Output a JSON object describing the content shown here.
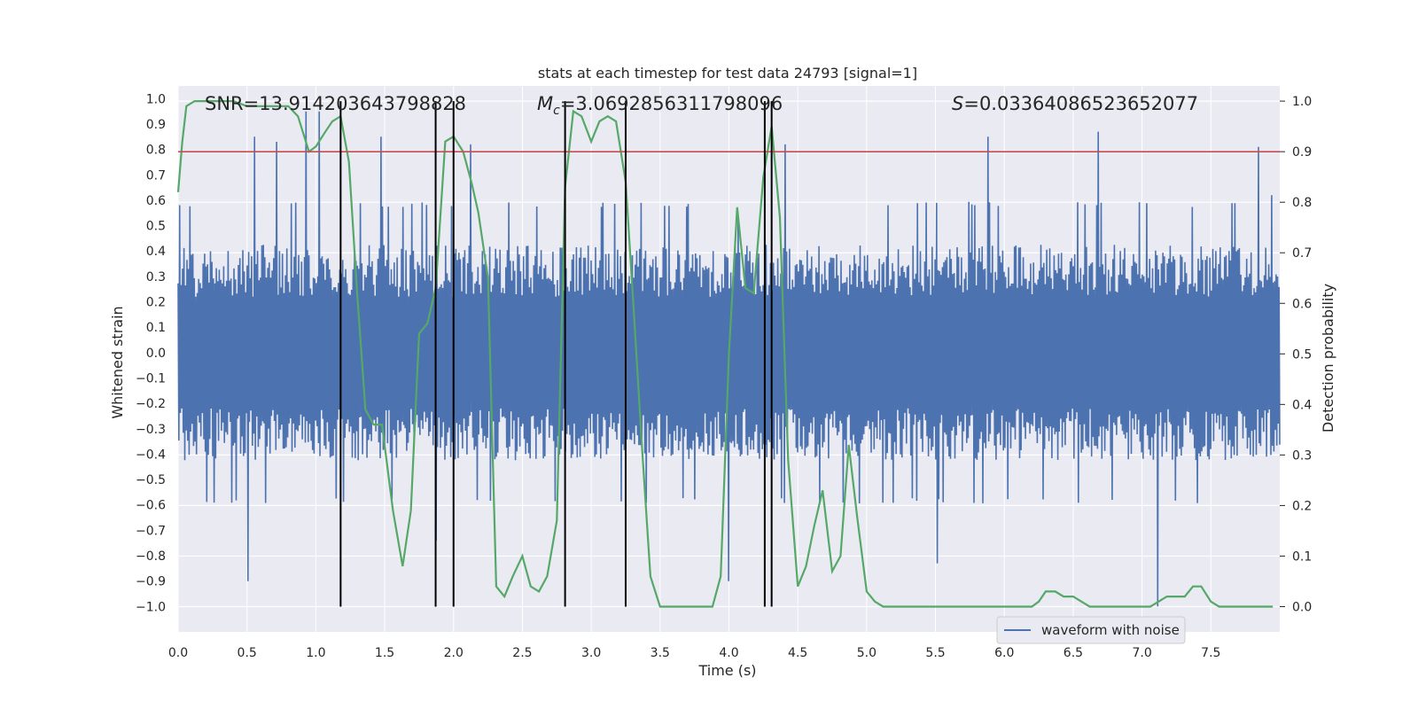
{
  "chart_data": {
    "type": "line",
    "title": "stats at each timestep for test data 24793 [signal=1]",
    "xlabel": "Time (s)",
    "ylabel_left": "Whitened strain",
    "ylabel_right": "Detection probability",
    "xlim": [
      0.0,
      8.0
    ],
    "ylim_left": [
      -1.1,
      1.05
    ],
    "ylim_right": [
      -0.05,
      1.03
    ],
    "x_ticks": [
      "0.0",
      "0.5",
      "1.0",
      "1.5",
      "2.0",
      "2.5",
      "3.0",
      "3.5",
      "4.0",
      "4.5",
      "5.0",
      "5.5",
      "6.0",
      "6.5",
      "7.0",
      "7.5"
    ],
    "x_tick_values": [
      0.0,
      0.5,
      1.0,
      1.5,
      2.0,
      2.5,
      3.0,
      3.5,
      4.0,
      4.5,
      5.0,
      5.5,
      6.0,
      6.5,
      7.0,
      7.5
    ],
    "y_left_ticks": [
      "1.0",
      "0.9",
      "0.8",
      "0.7",
      "0.6",
      "0.5",
      "0.4",
      "0.3",
      "0.2",
      "0.1",
      "0.0",
      "−0.1",
      "−0.2",
      "−0.3",
      "−0.4",
      "−0.5",
      "−0.6",
      "−0.7",
      "−0.8",
      "−0.9",
      "−1.0"
    ],
    "y_left_tick_values": [
      1.0,
      0.9,
      0.8,
      0.7,
      0.6,
      0.5,
      0.4,
      0.3,
      0.2,
      0.1,
      0.0,
      -0.1,
      -0.2,
      -0.3,
      -0.4,
      -0.5,
      -0.6,
      -0.7,
      -0.8,
      -0.9,
      -1.0
    ],
    "y_right_ticks": [
      "1.0",
      "0.9",
      "0.8",
      "0.7",
      "0.6",
      "0.5",
      "0.4",
      "0.3",
      "0.2",
      "0.1",
      "0.0"
    ],
    "y_right_tick_values": [
      1.0,
      0.9,
      0.8,
      0.7,
      0.6,
      0.5,
      0.4,
      0.3,
      0.2,
      0.1,
      0.0
    ],
    "annotations": {
      "snr": "SNR=13.914203643798828",
      "mc_symbol": "M",
      "mc_sub": "c",
      "mc_value": "=3.0692856311798096",
      "s_symbol": "S",
      "s_value": "=0.03364086523652077"
    },
    "threshold": 0.9,
    "vertical_lines": [
      1.18,
      1.87,
      2.0,
      2.81,
      3.25,
      4.26,
      4.31
    ],
    "legend": {
      "label": "waveform with noise",
      "position": "lower-right"
    },
    "waveform": {
      "name": "waveform with noise",
      "typical_high": 0.4,
      "typical_low": -0.4,
      "spikes": [
        {
          "x": 0.51,
          "y": -0.9
        },
        {
          "x": 0.55,
          "y": 0.85
        },
        {
          "x": 0.72,
          "y": 0.83
        },
        {
          "x": 0.93,
          "y": 0.95
        },
        {
          "x": 1.02,
          "y": 0.95
        },
        {
          "x": 1.47,
          "y": 0.85
        },
        {
          "x": 1.87,
          "y": -0.74
        },
        {
          "x": 2.12,
          "y": 0.82
        },
        {
          "x": 4.0,
          "y": -0.9
        },
        {
          "x": 4.07,
          "y": 0.53
        },
        {
          "x": 4.41,
          "y": 0.82
        },
        {
          "x": 5.51,
          "y": -0.83
        },
        {
          "x": 5.88,
          "y": 0.85
        },
        {
          "x": 6.68,
          "y": 0.87
        },
        {
          "x": 7.11,
          "y": -1.0
        },
        {
          "x": 7.85,
          "y": 0.81
        },
        {
          "x": 7.94,
          "y": 0.62
        }
      ]
    },
    "probability": {
      "name": "detection probability",
      "x": [
        0.0,
        0.03,
        0.06,
        0.12,
        0.2,
        0.3,
        0.4,
        0.5,
        0.6,
        0.7,
        0.8,
        0.87,
        0.95,
        1.0,
        1.07,
        1.12,
        1.18,
        1.24,
        1.3,
        1.36,
        1.42,
        1.48,
        1.56,
        1.63,
        1.69,
        1.75,
        1.81,
        1.87,
        1.94,
        2.0,
        2.07,
        2.13,
        2.18,
        2.25,
        2.31,
        2.37,
        2.43,
        2.5,
        2.56,
        2.62,
        2.68,
        2.75,
        2.81,
        2.87,
        2.93,
        3.0,
        3.06,
        3.12,
        3.18,
        3.25,
        3.31,
        3.37,
        3.43,
        3.5,
        3.56,
        3.62,
        3.68,
        3.75,
        3.82,
        3.88,
        3.94,
        4.0,
        4.06,
        4.12,
        4.18,
        4.25,
        4.31,
        4.37,
        4.43,
        4.5,
        4.56,
        4.62,
        4.68,
        4.75,
        4.81,
        4.87,
        4.93,
        5.0,
        5.06,
        5.12,
        5.2,
        5.3,
        5.4,
        5.5,
        5.6,
        5.7,
        5.8,
        5.9,
        6.0,
        6.1,
        6.2,
        6.25,
        6.3,
        6.37,
        6.43,
        6.5,
        6.56,
        6.62,
        6.68,
        6.75,
        6.8,
        6.9,
        7.0,
        7.06,
        7.12,
        7.18,
        7.25,
        7.31,
        7.37,
        7.43,
        7.5,
        7.56,
        7.62,
        7.7,
        7.8,
        7.9,
        7.95
      ],
      "y": [
        0.82,
        0.92,
        0.99,
        1.0,
        1.0,
        1.0,
        1.0,
        0.99,
        0.99,
        0.99,
        0.99,
        0.97,
        0.9,
        0.91,
        0.94,
        0.96,
        0.97,
        0.88,
        0.62,
        0.39,
        0.36,
        0.36,
        0.19,
        0.08,
        0.19,
        0.54,
        0.56,
        0.63,
        0.92,
        0.93,
        0.9,
        0.84,
        0.78,
        0.65,
        0.04,
        0.02,
        0.06,
        0.1,
        0.04,
        0.03,
        0.06,
        0.17,
        0.83,
        0.98,
        0.97,
        0.92,
        0.96,
        0.97,
        0.96,
        0.84,
        0.58,
        0.31,
        0.06,
        0.0,
        0.0,
        0.0,
        0.0,
        0.0,
        0.0,
        0.0,
        0.06,
        0.5,
        0.79,
        0.63,
        0.62,
        0.85,
        0.95,
        0.77,
        0.29,
        0.04,
        0.08,
        0.16,
        0.23,
        0.07,
        0.1,
        0.32,
        0.18,
        0.03,
        0.01,
        0.0,
        0.0,
        0.0,
        0.0,
        0.0,
        0.0,
        0.0,
        0.0,
        0.0,
        0.0,
        0.0,
        0.0,
        0.01,
        0.03,
        0.03,
        0.02,
        0.02,
        0.01,
        0.0,
        0.0,
        0.0,
        0.0,
        0.0,
        0.0,
        0.0,
        0.01,
        0.02,
        0.02,
        0.02,
        0.04,
        0.04,
        0.01,
        0.0,
        0.0,
        0.0,
        0.0,
        0.0,
        0.0
      ]
    },
    "colors": {
      "background": "#eaeaf2",
      "grid": "#ffffff",
      "waveform": "#4c72b0",
      "probability": "#55a868",
      "threshold": "#c44e52",
      "vertical_line": "#000000"
    }
  }
}
